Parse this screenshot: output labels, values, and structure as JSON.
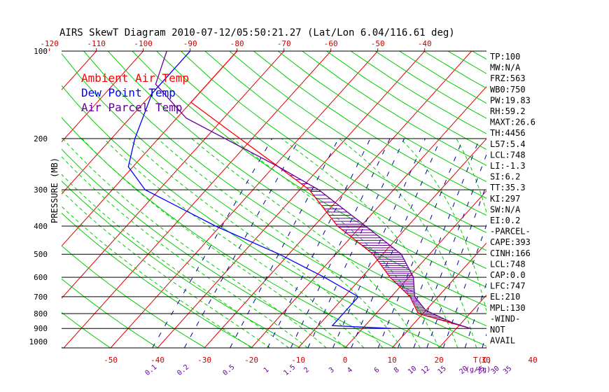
{
  "colors": {
    "temp": "#ff0000",
    "dewpoint": "#0000ff",
    "parcel": "#660099",
    "isotherm": "#dd0000",
    "dry_adiabat": "#00cc00",
    "moist_adiabat": "#00cc00",
    "mixing_ratio": "#000099",
    "isobar": "#000000",
    "top_axis": "#cc0000",
    "bottom_axis": "#cc0000",
    "mixing_axis": "#660099",
    "stats": "#000000"
  },
  "chart_data": {
    "type": "line",
    "title": "AIRS SkewT Diagram 2010-07-12/05:50:21.27 (Lat/Lon 6.04/116.61 deg)",
    "ylabel": "PRESSURE (MB)",
    "xlabel": "T(C)",
    "mixing_unit": "(g/kg)",
    "legend": [
      "Ambient Air Temp",
      "Dew Point Temp",
      "Air Parcel Temp"
    ],
    "legend_position": "top-left",
    "pressure_ticks": [
      "100",
      "200",
      "300",
      "400",
      "500",
      "600",
      "700",
      "800",
      "900",
      "1000"
    ],
    "pressure_values": [
      100,
      200,
      300,
      400,
      500,
      600,
      700,
      800,
      900,
      1000
    ],
    "ylim": [
      100,
      1050
    ],
    "top_temp_ticks": [
      "-120",
      "-110",
      "-100",
      "-90",
      "-80",
      "-70",
      "-60",
      "-50",
      "-40"
    ],
    "top_temp_values": [
      -120,
      -110,
      -100,
      -90,
      -80,
      -70,
      -60,
      -50,
      -40
    ],
    "bottom_temp_ticks": [
      "-50",
      "-40",
      "-30",
      "-20",
      "-10",
      "0",
      "10",
      "20",
      "30",
      "40"
    ],
    "bottom_temp_values": [
      -50,
      -40,
      -30,
      -20,
      -10,
      0,
      10,
      20,
      30,
      40
    ],
    "mixing_ratio_ticks": [
      "0.1",
      "0.2",
      "0.5",
      "1",
      "1.5",
      "2",
      "3",
      "4",
      "6",
      "8",
      "10",
      "12",
      "15",
      "20",
      "25",
      "30",
      "35"
    ],
    "mixing_ratio_values": [
      0.1,
      0.2,
      0.5,
      1,
      1.5,
      2,
      3,
      4,
      6,
      8,
      10,
      12,
      15,
      20,
      25,
      30,
      35
    ],
    "series": [
      {
        "name": "Ambient Air Temp",
        "points": [
          [
            100,
            -80
          ],
          [
            150,
            -80
          ],
          [
            180,
            -69
          ],
          [
            250,
            -49
          ],
          [
            300,
            -38
          ],
          [
            400,
            -25
          ],
          [
            500,
            -12
          ],
          [
            600,
            -4
          ],
          [
            700,
            4
          ],
          [
            800,
            9
          ],
          [
            900,
            23
          ]
        ]
      },
      {
        "name": "Dew Point Temp",
        "points": [
          [
            100,
            -90
          ],
          [
            140,
            -90
          ],
          [
            200,
            -85
          ],
          [
            250,
            -81
          ],
          [
            300,
            -73
          ],
          [
            400,
            -51
          ],
          [
            500,
            -32
          ],
          [
            600,
            -18
          ],
          [
            700,
            -7
          ],
          [
            800,
            -7
          ],
          [
            880,
            -7
          ],
          [
            900,
            6
          ]
        ]
      },
      {
        "name": "Air Parcel Temp",
        "points": [
          [
            100,
            -95
          ],
          [
            130,
            -91
          ],
          [
            170,
            -78
          ],
          [
            250,
            -49
          ],
          [
            300,
            -36
          ],
          [
            400,
            -19
          ],
          [
            500,
            -6
          ],
          [
            600,
            1
          ],
          [
            700,
            5
          ],
          [
            780,
            10
          ],
          [
            860,
            18
          ],
          [
            900,
            23
          ]
        ]
      }
    ],
    "stats": [
      "TP:100",
      "MW:N/A",
      "FRZ:563",
      "WB0:750",
      "PW:19.83",
      "RH:59.2",
      "MAXT:26.6",
      "TH:4456",
      "L57:5.4",
      "LCL:748",
      "LI:-1.3",
      "SI:6.2",
      "TT:35.3",
      "KI:297",
      "SW:N/A",
      "EI:0.2",
      "-PARCEL-",
      "CAPE:393",
      "CINH:166",
      "LCL:748",
      "CAP:0.0",
      "LFC:747",
      "EL:210",
      "MPL:130",
      "-WIND-",
      "NOT",
      "AVAIL"
    ]
  }
}
